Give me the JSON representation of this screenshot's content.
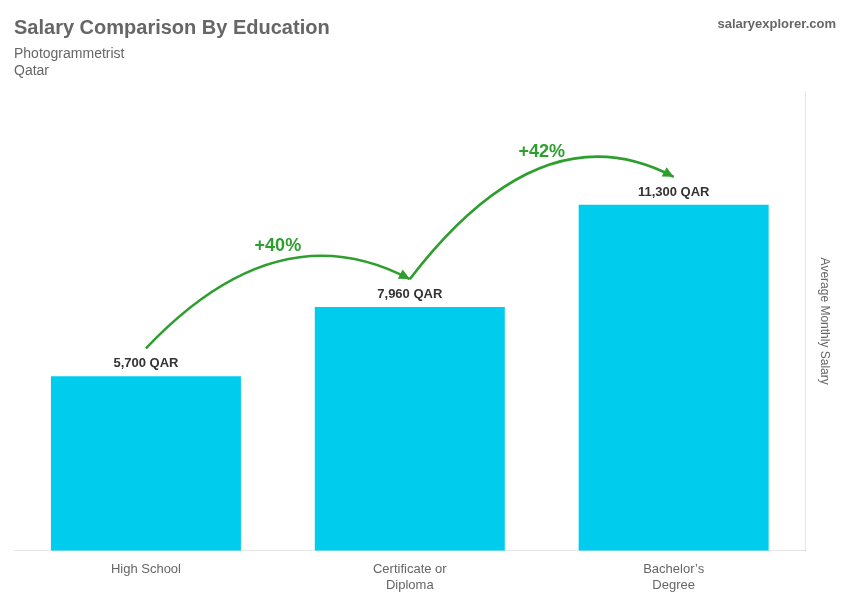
{
  "chart_data": {
    "type": "bar",
    "title": "Salary Comparison By Education",
    "subtitle": [
      "Photogrammetrist",
      "Qatar"
    ],
    "source": "salaryexplorer.com",
    "y_label": "Average Monthly Salary",
    "categories": [
      "High School",
      "Certificate or\nDiploma",
      "Bachelor’s\nDegree"
    ],
    "values": [
      5700,
      7960,
      11300
    ],
    "value_labels": [
      "5,700 QAR",
      "7,960 QAR",
      "11,300 QAR"
    ],
    "data_labels": true,
    "annotations": [
      "+40%",
      "+42%"
    ],
    "color": "#00ccee",
    "ylim": [
      0,
      15000
    ],
    "grid": false,
    "tick_labels": "x"
  }
}
